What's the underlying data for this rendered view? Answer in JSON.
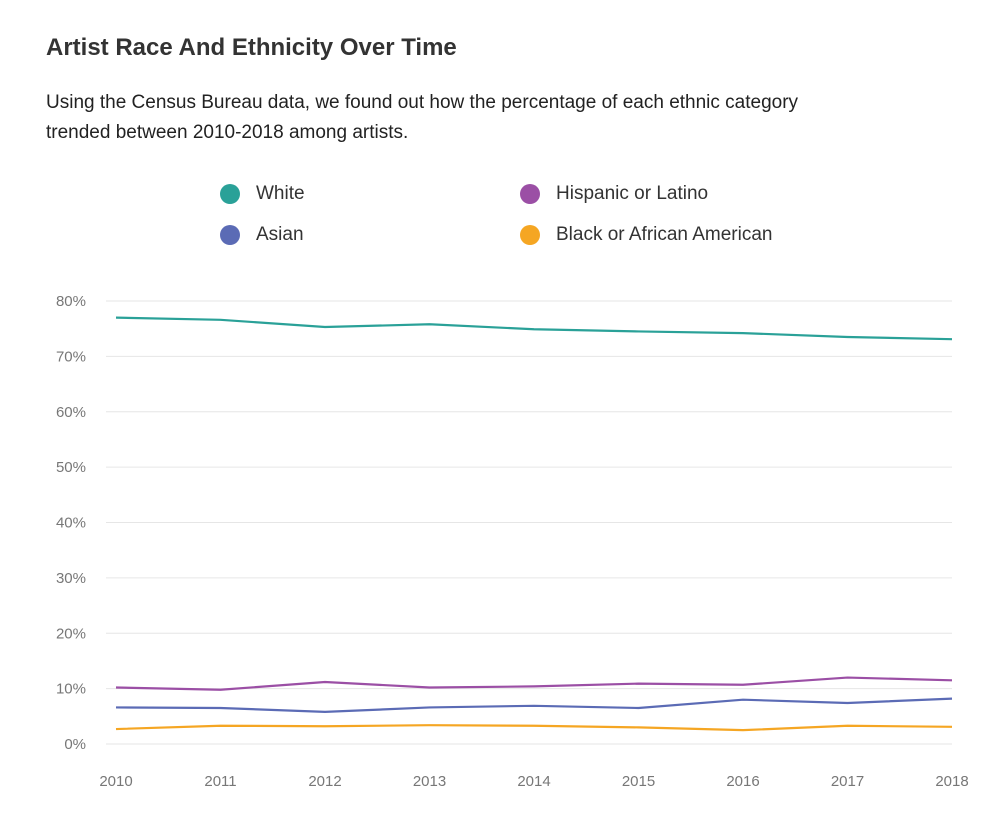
{
  "header": {
    "title": "Artist Race And Ethnicity Over Time",
    "subtitle": "Using the Census Bureau data, we found out how the percentage of each ethnic category trended between 2010-2018 among artists."
  },
  "chart_data": {
    "type": "line",
    "x": [
      "2010",
      "2011",
      "2012",
      "2013",
      "2014",
      "2015",
      "2016",
      "2017",
      "2018"
    ],
    "ylim": [
      0,
      80
    ],
    "y_ticks": [
      "0%",
      "10%",
      "20%",
      "30%",
      "40%",
      "50%",
      "60%",
      "70%",
      "80%"
    ],
    "grid": true,
    "legend_position": "top",
    "series": [
      {
        "name": "White",
        "color": "#2aa198",
        "values": [
          77.0,
          76.6,
          75.3,
          75.8,
          74.9,
          74.5,
          74.2,
          73.5,
          73.1
        ]
      },
      {
        "name": "Hispanic or Latino",
        "color": "#9b4fa5",
        "values": [
          10.2,
          9.8,
          11.2,
          10.2,
          10.4,
          10.9,
          10.7,
          12.0,
          11.5
        ]
      },
      {
        "name": "Asian",
        "color": "#5b6bb5",
        "values": [
          6.6,
          6.5,
          5.8,
          6.6,
          6.9,
          6.5,
          8.0,
          7.4,
          8.2
        ]
      },
      {
        "name": "Black or African American",
        "color": "#f5a623",
        "values": [
          2.7,
          3.3,
          3.2,
          3.4,
          3.3,
          3.0,
          2.5,
          3.3,
          3.1
        ]
      }
    ]
  }
}
